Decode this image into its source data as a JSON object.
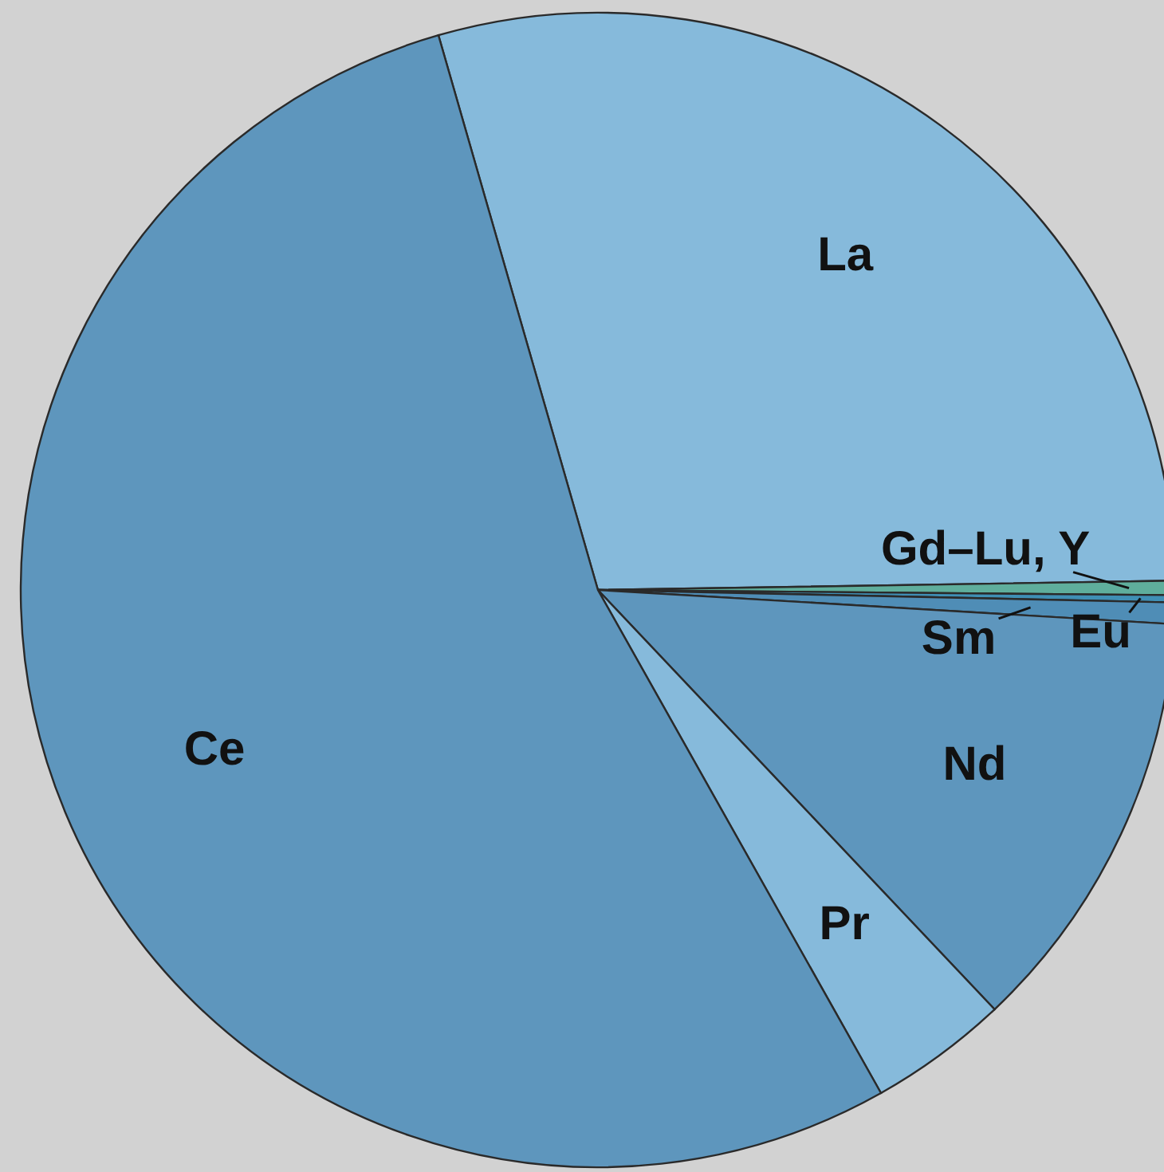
{
  "chart_data": {
    "type": "pie",
    "categories": [
      "La",
      "Gd–Lu, Y",
      "Eu",
      "Sm",
      "Nd",
      "Pr",
      "Ce"
    ],
    "values": [
      29.2,
      0.4,
      0.2,
      0.6,
      12,
      3.9,
      53.7
    ],
    "colors": [
      "#86badb",
      "#5fae9c",
      "#3f8fb5",
      "#4f8db6",
      "#5e96bd",
      "#86badb",
      "#5e96bd"
    ]
  }
}
